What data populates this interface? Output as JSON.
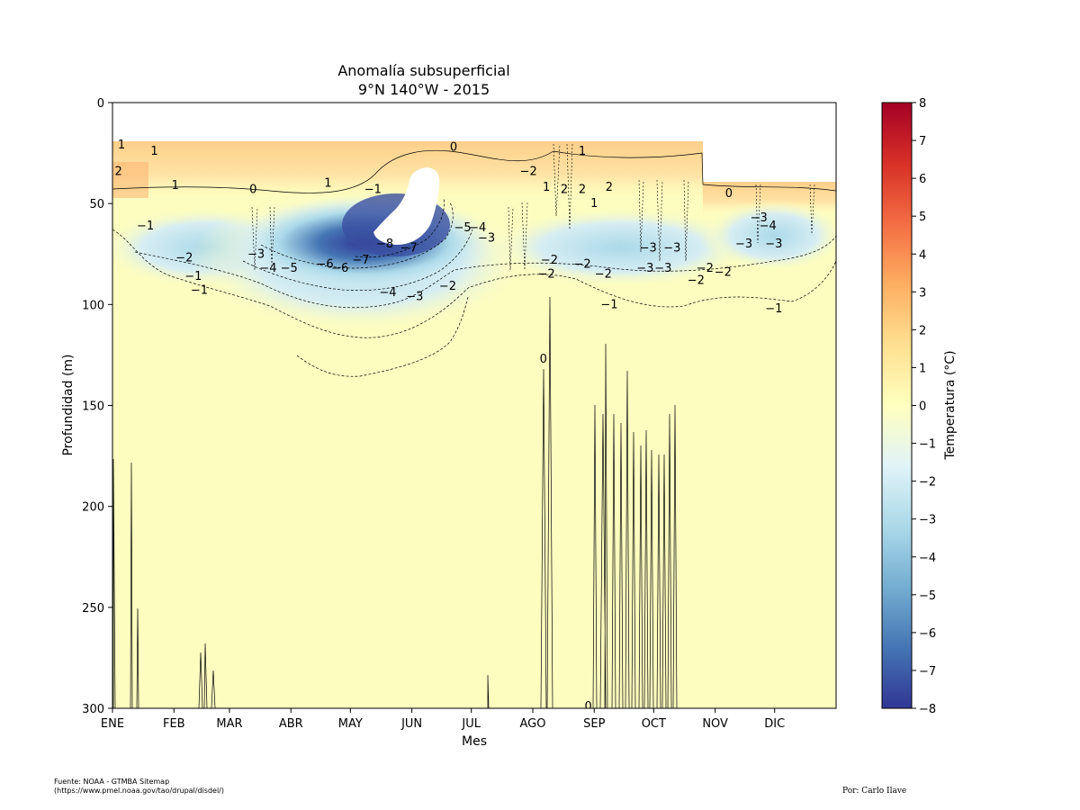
{
  "chart_data": {
    "type": "heatmap",
    "title": "Anomalía subsuperficial",
    "subtitle": "9°N 140°W - 2015",
    "xlabel": "Mes",
    "ylabel": "Profundidad (m)",
    "x_ticks": [
      "ENE",
      "FEB",
      "MAR",
      "ABR",
      "MAY",
      "JUN",
      "JUL",
      "AGO",
      "SEP",
      "OCT",
      "NOV",
      "DIC"
    ],
    "y_ticks": [
      0,
      50,
      100,
      150,
      200,
      250,
      300
    ],
    "ylim": [
      300,
      0
    ],
    "colorbar": {
      "label": "Temperatura (°C)",
      "range": [
        -8,
        8
      ],
      "ticks": [
        "8",
        "7",
        "6",
        "5",
        "4",
        "3",
        "2",
        "1",
        "0",
        "−1",
        "−2",
        "−3",
        "−4",
        "−5",
        "−6",
        "−7",
        "−8"
      ],
      "colormap": "RdYlBu_r",
      "colors": [
        "#313695",
        "#4575b4",
        "#74add1",
        "#abd9e9",
        "#e0f3f8",
        "#ffffbf",
        "#fee090",
        "#fdae61",
        "#f46d43",
        "#d73027",
        "#a50026"
      ]
    },
    "data_top_depth": [
      {
        "period": "ENE–OCT",
        "depth": 20
      },
      {
        "period": "OCT–DIC",
        "depth": 40
      }
    ],
    "features": {
      "surface_layer_anomaly": "+1 a +2 °C (0–50 m)",
      "cold_core": {
        "period": "ABR–JUN",
        "depth_range": [
          50,
          80
        ],
        "min_anomaly": -8
      },
      "deep_anomaly": "0 a +0.5 °C (100–300 m)"
    },
    "contour_labels": [
      {
        "text": "1",
        "month": 0.15,
        "depth": 21
      },
      {
        "text": "1",
        "month": 0.7,
        "depth": 24
      },
      {
        "text": "2",
        "month": 0.1,
        "depth": 34
      },
      {
        "text": "1",
        "month": 1.05,
        "depth": 41
      },
      {
        "text": "0",
        "month": 2.35,
        "depth": 43
      },
      {
        "text": "1",
        "month": 3.6,
        "depth": 40
      },
      {
        "text": "−1",
        "month": 4.35,
        "depth": 43
      },
      {
        "text": "0",
        "month": 5.7,
        "depth": 22
      },
      {
        "text": "−2",
        "month": 6.95,
        "depth": 34
      },
      {
        "text": "1",
        "month": 7.85,
        "depth": 24
      },
      {
        "text": "1",
        "month": 7.25,
        "depth": 42
      },
      {
        "text": "2",
        "month": 7.55,
        "depth": 43
      },
      {
        "text": "2",
        "month": 7.85,
        "depth": 43
      },
      {
        "text": "1",
        "month": 8.05,
        "depth": 50
      },
      {
        "text": "2",
        "month": 8.3,
        "depth": 42
      },
      {
        "text": "0",
        "month": 10.3,
        "depth": 45
      },
      {
        "text": "−1",
        "month": 0.55,
        "depth": 61
      },
      {
        "text": "−2",
        "month": 1.2,
        "depth": 77
      },
      {
        "text": "−1",
        "month": 1.35,
        "depth": 86
      },
      {
        "text": "−1",
        "month": 1.45,
        "depth": 93
      },
      {
        "text": "−3",
        "month": 2.4,
        "depth": 75
      },
      {
        "text": "−4",
        "month": 2.6,
        "depth": 82
      },
      {
        "text": "−5",
        "month": 2.95,
        "depth": 82
      },
      {
        "text": "−6",
        "month": 3.55,
        "depth": 80
      },
      {
        "text": "−6",
        "month": 3.8,
        "depth": 82
      },
      {
        "text": "−7",
        "month": 4.15,
        "depth": 78
      },
      {
        "text": "−8",
        "month": 4.55,
        "depth": 70
      },
      {
        "text": "−7",
        "month": 4.95,
        "depth": 72
      },
      {
        "text": "−4",
        "month": 4.6,
        "depth": 94
      },
      {
        "text": "−3",
        "month": 5.05,
        "depth": 96
      },
      {
        "text": "−2",
        "month": 5.6,
        "depth": 91
      },
      {
        "text": "−5",
        "month": 5.85,
        "depth": 62
      },
      {
        "text": "−4",
        "month": 6.1,
        "depth": 62
      },
      {
        "text": "−3",
        "month": 6.25,
        "depth": 67
      },
      {
        "text": "−2",
        "month": 7.3,
        "depth": 78
      },
      {
        "text": "−2",
        "month": 7.25,
        "depth": 85
      },
      {
        "text": "−2",
        "month": 7.85,
        "depth": 80
      },
      {
        "text": "−2",
        "month": 8.2,
        "depth": 85
      },
      {
        "text": "−3",
        "month": 8.9,
        "depth": 82
      },
      {
        "text": "−3",
        "month": 9.2,
        "depth": 82
      },
      {
        "text": "−2",
        "month": 9.9,
        "depth": 82
      },
      {
        "text": "−2",
        "month": 10.2,
        "depth": 84
      },
      {
        "text": "−2",
        "month": 9.75,
        "depth": 88
      },
      {
        "text": "−3",
        "month": 8.95,
        "depth": 72
      },
      {
        "text": "−3",
        "month": 9.35,
        "depth": 72
      },
      {
        "text": "−3",
        "month": 10.55,
        "depth": 70
      },
      {
        "text": "−3",
        "month": 11.05,
        "depth": 70
      },
      {
        "text": "−3",
        "month": 10.8,
        "depth": 57
      },
      {
        "text": "−4",
        "month": 10.95,
        "depth": 61
      },
      {
        "text": "−1",
        "month": 8.3,
        "depth": 100
      },
      {
        "text": "−1",
        "month": 11.05,
        "depth": 102
      },
      {
        "text": "0",
        "month": 7.2,
        "depth": 127
      },
      {
        "text": "0",
        "month": 7.95,
        "depth": 299
      }
    ]
  },
  "footer": {
    "source": "Fuente: NOAA - GTMBA Sitemap\n(https://www.pmel.noaa.gov/tao/drupal/disdel/)",
    "author": "Por: Carlo Ilave"
  }
}
